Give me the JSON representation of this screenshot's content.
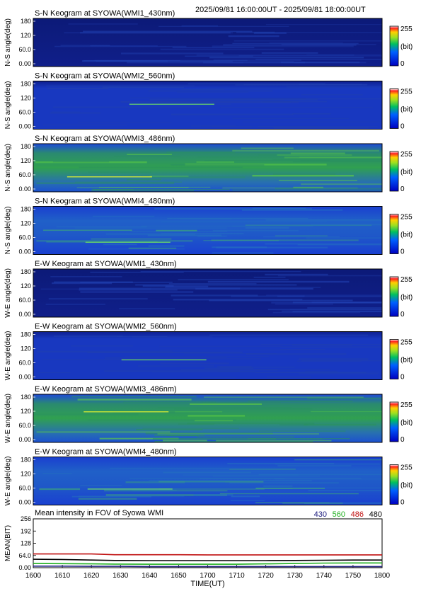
{
  "header": {
    "time_range": "2025/09/81 16:00:00UT - 2025/09/81 18:00:00UT"
  },
  "colors": {
    "bg_dark": "#0a1a70",
    "bg_blue": "#1a3ad0",
    "green": "#30c050",
    "yellow": "#f0f020",
    "red": "#e02020",
    "line_430": "#202080",
    "line_560": "#20b020",
    "line_486": "#c01010",
    "line_480": "#000000"
  },
  "colorbar": {
    "max_label": "255",
    "unit_label": "(bit)",
    "min_label": "0"
  },
  "keogram_y_ticks": [
    "180",
    "120",
    "60.0",
    "0.00"
  ],
  "keograms": [
    {
      "title": "S-N Keogram at SYOWA(WMI1_430nm)",
      "ylabel": "N-S angle(deg)",
      "intensity": 0.08
    },
    {
      "title": "S-N Keogram at SYOWA(WMI2_560nm)",
      "ylabel": "N-S angle(deg)",
      "intensity": 0.22
    },
    {
      "title": "S-N Keogram at SYOWA(WMI3_486nm)",
      "ylabel": "N-S angle(deg)",
      "intensity": 0.62
    },
    {
      "title": "S-N Keogram at SYOWA(WMI4_480nm)",
      "ylabel": "N-S angle(deg)",
      "intensity": 0.42
    },
    {
      "title": "E-W Keogram at SYOWA(WMI1_430nm)",
      "ylabel": "W-E angle(deg)",
      "intensity": 0.07
    },
    {
      "title": "E-W Keogram at SYOWA(WMI2_560nm)",
      "ylabel": "W-E angle(deg)",
      "intensity": 0.2
    },
    {
      "title": "E-W Keogram at SYOWA(WMI3_486nm)",
      "ylabel": "W-E angle(deg)",
      "intensity": 0.6
    },
    {
      "title": "E-W Keogram at SYOWA(WMI4_480nm)",
      "ylabel": "W-E angle(deg)",
      "intensity": 0.44
    }
  ],
  "chart_data": {
    "type": "line",
    "title": "Mean intensity in FOV of Syowa WMI",
    "xlabel": "TIME(UT)",
    "ylabel": "MEAN(BIT)",
    "x_ticks": [
      "1600",
      "1610",
      "1620",
      "1630",
      "1640",
      "1650",
      "1700",
      "1710",
      "1720",
      "1730",
      "1740",
      "1750",
      "1800"
    ],
    "y_ticks": [
      "256",
      "192",
      "128",
      "64.0",
      "0.00"
    ],
    "xlim": [
      0,
      120
    ],
    "ylim": [
      0,
      256
    ],
    "x": [
      0,
      10,
      20,
      28,
      30,
      40,
      50,
      60,
      70,
      80,
      90,
      100,
      110,
      120
    ],
    "series": [
      {
        "name": "430",
        "color": "#202080",
        "values": [
          8,
          8,
          7,
          7,
          7,
          6,
          6,
          6,
          6,
          6,
          6,
          6,
          6,
          6
        ]
      },
      {
        "name": "560",
        "color": "#20b020",
        "values": [
          22,
          21,
          20,
          19,
          19,
          18,
          18,
          18,
          18,
          20,
          22,
          24,
          25,
          25
        ]
      },
      {
        "name": "486",
        "color": "#c01010",
        "values": [
          72,
          72,
          72,
          68,
          68,
          68,
          68,
          67,
          67,
          67,
          67,
          67,
          67,
          67
        ]
      },
      {
        "name": "480",
        "color": "#000000",
        "values": [
          44,
          43,
          40,
          38,
          38,
          37,
          37,
          37,
          37,
          37,
          38,
          39,
          40,
          40
        ]
      }
    ]
  }
}
